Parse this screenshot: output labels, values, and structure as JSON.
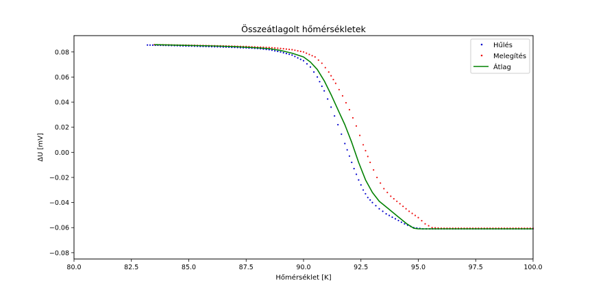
{
  "chart_data": {
    "type": "scatter",
    "title": "Összeátlagolt hőmérsékletek",
    "xlabel": "Hőmérséklet [K]",
    "ylabel": "ΔU [mV]",
    "xlim": [
      80.0,
      100.0
    ],
    "ylim": [
      -0.085,
      0.093
    ],
    "xticks": [
      "80.0",
      "82.5",
      "85.0",
      "87.5",
      "90.0",
      "92.5",
      "95.0",
      "97.5",
      "100.0"
    ],
    "yticks": [
      "0.08",
      "0.06",
      "0.04",
      "0.02",
      "0.00",
      "−0.02",
      "−0.04",
      "−0.06",
      "−0.08"
    ],
    "grid": false,
    "legend_position": "top-right",
    "colors": {
      "cooling": "#0000cc",
      "heating": "#ee1111",
      "average": "#008000"
    },
    "series": [
      {
        "name": "Hűlés",
        "style": "dots",
        "color": "#0000cc",
        "x": [
          83.2,
          84.0,
          85.0,
          86.0,
          87.0,
          88.0,
          88.5,
          89.0,
          89.5,
          90.0,
          90.3,
          90.6,
          90.9,
          91.2,
          91.5,
          91.8,
          92.0,
          92.2,
          92.4,
          92.6,
          92.8,
          93.0,
          93.3,
          93.6,
          94.0,
          94.4,
          94.8,
          95.2,
          95.5,
          96.0,
          97.0,
          98.0,
          99.0,
          100.0
        ],
        "y": [
          0.0855,
          0.0852,
          0.0847,
          0.0842,
          0.0836,
          0.0828,
          0.0818,
          0.08,
          0.0775,
          0.073,
          0.068,
          0.06,
          0.049,
          0.036,
          0.022,
          0.007,
          -0.003,
          -0.013,
          -0.022,
          -0.03,
          -0.036,
          -0.04,
          -0.045,
          -0.049,
          -0.053,
          -0.057,
          -0.06,
          -0.061,
          -0.061,
          -0.061,
          -0.061,
          -0.061,
          -0.061,
          -0.061
        ]
      },
      {
        "name": "Melegítés",
        "style": "dots",
        "color": "#ee1111",
        "x": [
          83.5,
          84.5,
          85.5,
          86.5,
          87.5,
          88.5,
          89.0,
          89.5,
          90.0,
          90.5,
          90.8,
          91.1,
          91.4,
          91.7,
          92.0,
          92.3,
          92.6,
          92.9,
          93.2,
          93.5,
          93.8,
          94.2,
          94.6,
          95.0,
          95.3,
          95.6,
          96.0,
          97.0,
          98.0,
          99.0,
          100.0
        ],
        "y": [
          0.0858,
          0.0855,
          0.0852,
          0.0848,
          0.0843,
          0.0835,
          0.0828,
          0.0818,
          0.08,
          0.076,
          0.071,
          0.064,
          0.055,
          0.045,
          0.034,
          0.021,
          0.006,
          -0.008,
          -0.02,
          -0.029,
          -0.035,
          -0.041,
          -0.047,
          -0.052,
          -0.057,
          -0.06,
          -0.0605,
          -0.0605,
          -0.0605,
          -0.0605,
          -0.0605
        ]
      },
      {
        "name": "Átlag",
        "style": "line",
        "color": "#008000",
        "x": [
          83.5,
          85.0,
          86.0,
          87.0,
          88.0,
          88.5,
          89.0,
          89.5,
          90.0,
          90.3,
          90.6,
          90.9,
          91.2,
          91.5,
          91.8,
          92.1,
          92.4,
          92.7,
          93.0,
          93.3,
          93.7,
          94.1,
          94.5,
          94.8,
          95.0,
          95.5,
          96.0,
          97.0,
          98.0,
          99.0,
          100.0
        ],
        "y": [
          0.0858,
          0.0852,
          0.0848,
          0.0842,
          0.0833,
          0.0826,
          0.0812,
          0.079,
          0.076,
          0.072,
          0.066,
          0.057,
          0.046,
          0.034,
          0.022,
          0.008,
          -0.008,
          -0.022,
          -0.032,
          -0.039,
          -0.045,
          -0.051,
          -0.057,
          -0.0605,
          -0.061,
          -0.061,
          -0.061,
          -0.061,
          -0.061,
          -0.061,
          -0.061
        ]
      }
    ]
  }
}
